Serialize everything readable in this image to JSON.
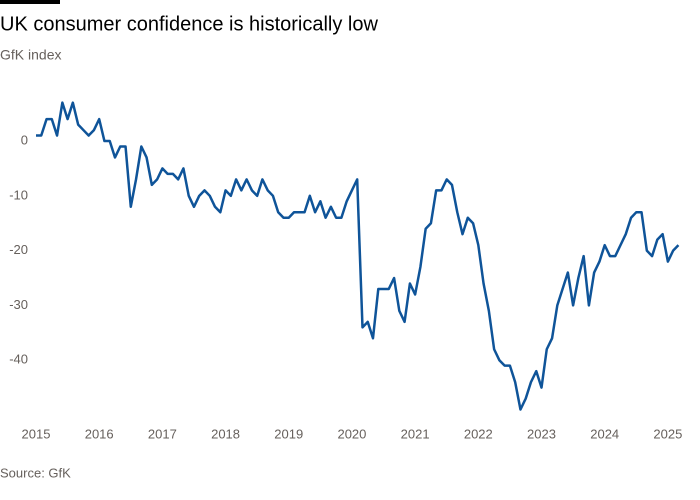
{
  "chart_data": {
    "type": "line",
    "title": "UK consumer confidence is historically low",
    "subtitle": "GfK index",
    "source": "Source: GfK",
    "x": [
      2015,
      2015.083,
      2015.167,
      2015.25,
      2015.333,
      2015.417,
      2015.5,
      2015.583,
      2015.667,
      2015.75,
      2015.833,
      2015.917,
      2016,
      2016.083,
      2016.167,
      2016.25,
      2016.333,
      2016.417,
      2016.5,
      2016.583,
      2016.667,
      2016.75,
      2016.833,
      2016.917,
      2017,
      2017.083,
      2017.167,
      2017.25,
      2017.333,
      2017.417,
      2017.5,
      2017.583,
      2017.667,
      2017.75,
      2017.833,
      2017.917,
      2018,
      2018.083,
      2018.167,
      2018.25,
      2018.333,
      2018.417,
      2018.5,
      2018.583,
      2018.667,
      2018.75,
      2018.833,
      2018.917,
      2019,
      2019.083,
      2019.167,
      2019.25,
      2019.333,
      2019.417,
      2019.5,
      2019.583,
      2019.667,
      2019.75,
      2019.833,
      2019.917,
      2020,
      2020.083,
      2020.167,
      2020.25,
      2020.333,
      2020.417,
      2020.5,
      2020.583,
      2020.667,
      2020.75,
      2020.833,
      2020.917,
      2021,
      2021.083,
      2021.167,
      2021.25,
      2021.333,
      2021.417,
      2021.5,
      2021.583,
      2021.667,
      2021.75,
      2021.833,
      2021.917,
      2022,
      2022.083,
      2022.167,
      2022.25,
      2022.333,
      2022.417,
      2022.5,
      2022.583,
      2022.667,
      2022.75,
      2022.833,
      2022.917,
      2023,
      2023.083,
      2023.167,
      2023.25,
      2023.333,
      2023.417,
      2023.5,
      2023.583,
      2023.667,
      2023.75,
      2023.833,
      2023.917,
      2024,
      2024.083,
      2024.167,
      2024.25,
      2024.333,
      2024.417,
      2024.5,
      2024.583,
      2024.667,
      2024.75,
      2024.833,
      2024.917,
      2025,
      2025.083,
      2025.167
    ],
    "series": [
      {
        "color": "#0f5499",
        "values": [
          1,
          1,
          4,
          4,
          1,
          7,
          4,
          7,
          3,
          2,
          1,
          2,
          4,
          0,
          0,
          -3,
          -1,
          -1,
          -12,
          -7,
          -1,
          -3,
          -8,
          -7,
          -5,
          -6,
          -6,
          -7,
          -5,
          -10,
          -12,
          -10,
          -9,
          -10,
          -12,
          -13,
          -9,
          -10,
          -7,
          -9,
          -7,
          -9,
          -10,
          -7,
          -9,
          -10,
          -13,
          -14,
          -14,
          -13,
          -13,
          -13,
          -10,
          -13,
          -11,
          -14,
          -12,
          -14,
          -14,
          -11,
          -9,
          -7,
          -34,
          -33,
          -36,
          -27,
          -27,
          -27,
          -25,
          -31,
          -33,
          -26,
          -28,
          -23,
          -16,
          -15,
          -9,
          -9,
          -7,
          -8,
          -13,
          -17,
          -14,
          -15,
          -19,
          -26,
          -31,
          -38,
          -40,
          -41,
          -41,
          -44,
          -49,
          -47,
          -44,
          -42,
          -45,
          -38,
          -36,
          -30,
          -27,
          -24,
          -30,
          -25,
          -21,
          -30,
          -24,
          -22,
          -19,
          -21,
          -21,
          -19,
          -17,
          -14,
          -13,
          -13,
          -20,
          -21,
          -18,
          -17,
          -22,
          -20,
          -19
        ]
      }
    ],
    "xlim": [
      2015,
      2025.35
    ],
    "xticks": [
      2015,
      2016,
      2017,
      2018,
      2019,
      2020,
      2021,
      2022,
      2023,
      2024,
      2025
    ],
    "ylim": [
      -50,
      8.4
    ],
    "yticks": [
      -40,
      -30,
      -20,
      -10,
      0
    ],
    "grid": false
  }
}
